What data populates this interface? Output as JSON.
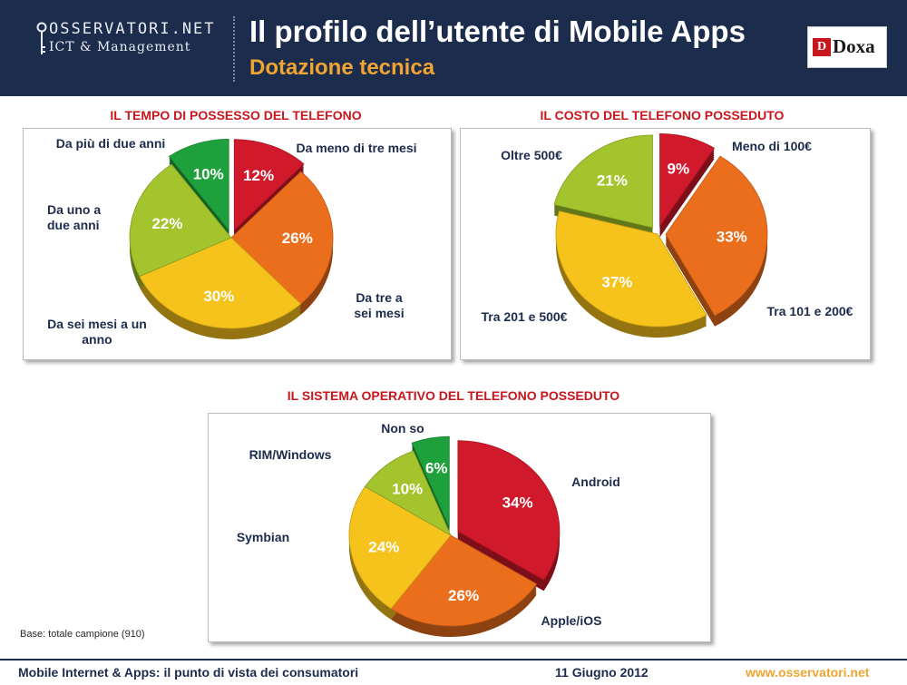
{
  "header": {
    "logo_name": "OSSERVATORI.NET",
    "logo_sub": "ICT & Management",
    "title": "Il profilo dell’utente di Mobile Apps",
    "subtitle": "Dotazione tecnica",
    "doxa_label": "Doxa"
  },
  "colors": {
    "header_bg": "#1c2c4c",
    "accent_orange": "#f0a431",
    "title_red": "#c8161d",
    "label_navy": "#1c2c4c",
    "red": "#d0192b",
    "orange": "#eb6e1c",
    "yellow": "#f6c21c",
    "light_green": "#a3c42c",
    "green": "#1ea03c"
  },
  "chart_data": [
    {
      "type": "pie",
      "title": "IL TEMPO DI POSSESSO DEL TELEFONO",
      "slices": [
        {
          "label": "Da meno di tre mesi",
          "value": 12,
          "value_label": "12%",
          "color": "#d0192b"
        },
        {
          "label": "Da tre a sei mesi",
          "value": 26,
          "value_label": "26%",
          "color": "#eb6e1c"
        },
        {
          "label": "Da sei mesi a un anno",
          "value": 30,
          "value_label": "30%",
          "color": "#f6c21c"
        },
        {
          "label": "Da uno a due anni",
          "value": 22,
          "value_label": "22%",
          "color": "#a3c42c"
        },
        {
          "label": "Da più di due anni",
          "value": 10,
          "value_label": "10%",
          "color": "#1ea03c"
        }
      ]
    },
    {
      "type": "pie",
      "title": "IL COSTO DEL TELEFONO POSSEDUTO",
      "slices": [
        {
          "label": "Meno di 100€",
          "value": 9,
          "value_label": "9%",
          "color": "#d0192b"
        },
        {
          "label": "Tra 101 e 200€",
          "value": 33,
          "value_label": "33%",
          "color": "#eb6e1c"
        },
        {
          "label": "Tra 201 e 500€",
          "value": 37,
          "value_label": "37%",
          "color": "#f6c21c"
        },
        {
          "label": "Oltre 500€",
          "value": 21,
          "value_label": "21%",
          "color": "#a3c42c"
        }
      ]
    },
    {
      "type": "pie",
      "title": "IL SISTEMA OPERATIVO DEL TELEFONO POSSEDUTO",
      "slices": [
        {
          "label": "Android",
          "value": 34,
          "value_label": "34%",
          "color": "#d0192b"
        },
        {
          "label": "Apple/iOS",
          "value": 26,
          "value_label": "26%",
          "color": "#eb6e1c"
        },
        {
          "label": "Symbian",
          "value": 24,
          "value_label": "24%",
          "color": "#f6c21c"
        },
        {
          "label": "RIM/Windows",
          "value": 10,
          "value_label": "10%",
          "color": "#a3c42c"
        },
        {
          "label": "Non so",
          "value": 6,
          "value_label": "6%",
          "color": "#1ea03c"
        }
      ]
    }
  ],
  "base_note": "Base: totale campione (910)",
  "footer": {
    "left": "Mobile Internet & Apps: il punto di vista dei consumatori",
    "date": "11 Giugno 2012",
    "url": "www.osservatori.net"
  }
}
